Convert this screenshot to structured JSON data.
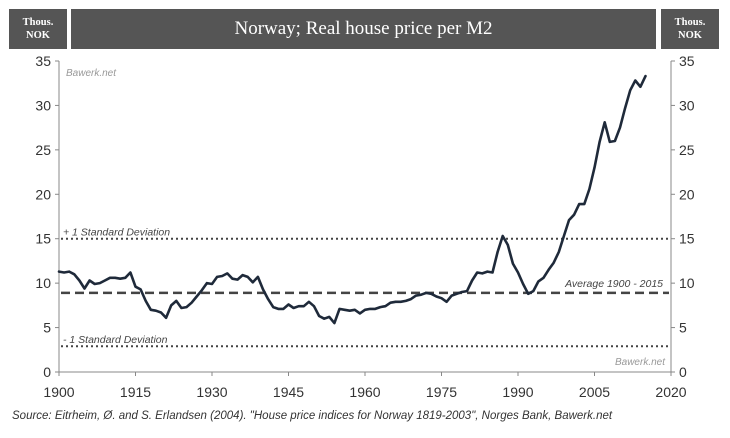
{
  "header": {
    "unit_left": "Thous.\nNOK",
    "unit_right": "Thous.\nNOK",
    "title": "Norway; Real house price per M2"
  },
  "watermarks": {
    "top": "Bawerk.net",
    "bottom": "Bawerk.net"
  },
  "source": "Source: Eitrheim, Ø. and S. Erlandsen (2004). \"House price indices for Norway 1819-2003\", Norges Bank, Bawerk.net",
  "colors": {
    "series": "#1f2a3a",
    "dotted": "#444444",
    "dashed": "#444444",
    "header_bg": "#555555"
  },
  "chart_data": {
    "type": "line",
    "title": "Norway; Real house price per M2",
    "ylabel": "Thous. NOK",
    "xlim": [
      1900,
      2020
    ],
    "ylim": [
      0,
      35
    ],
    "x_ticks": [
      1900,
      1915,
      1930,
      1945,
      1960,
      1975,
      1990,
      2005,
      2020
    ],
    "y_ticks": [
      0,
      5,
      10,
      15,
      20,
      25,
      30,
      35
    ],
    "grid": false,
    "series": [
      {
        "x": [
          1900,
          1901,
          1902,
          1903,
          1904,
          1905,
          1906,
          1907,
          1908,
          1909,
          1910,
          1911,
          1912,
          1913,
          1914,
          1915,
          1916,
          1917,
          1918,
          1919,
          1920,
          1921,
          1922,
          1923,
          1924,
          1925,
          1926,
          1927,
          1928,
          1929,
          1930,
          1931,
          1932,
          1933,
          1934,
          1935,
          1936,
          1937,
          1938,
          1939,
          1940,
          1941,
          1942,
          1943,
          1944,
          1945,
          1946,
          1947,
          1948,
          1949,
          1950,
          1951,
          1952,
          1953,
          1954,
          1955,
          1956,
          1957,
          1958,
          1959,
          1960,
          1961,
          1962,
          1963,
          1964,
          1965,
          1966,
          1967,
          1968,
          1969,
          1970,
          1971,
          1972,
          1973,
          1974,
          1975,
          1976,
          1977,
          1978,
          1979,
          1980,
          1981,
          1982,
          1983,
          1984,
          1985,
          1986,
          1987,
          1988,
          1989,
          1990,
          1991,
          1992,
          1993,
          1994,
          1995,
          1996,
          1997,
          1998,
          1999,
          2000,
          2001,
          2002,
          2003,
          2004,
          2005,
          2006,
          2007,
          2008,
          2009,
          2010,
          2011,
          2012,
          2013,
          2014,
          2015
        ],
        "values": [
          11.3,
          11.2,
          11.3,
          11.0,
          10.3,
          9.4,
          10.3,
          9.9,
          10.0,
          10.3,
          10.6,
          10.6,
          10.5,
          10.6,
          11.2,
          9.6,
          9.3,
          8.0,
          7.0,
          6.9,
          6.7,
          6.1,
          7.5,
          8.0,
          7.2,
          7.3,
          7.8,
          8.5,
          9.2,
          10.0,
          9.9,
          10.7,
          10.8,
          11.1,
          10.5,
          10.4,
          10.9,
          10.7,
          10.1,
          10.7,
          9.3,
          8.2,
          7.3,
          7.1,
          7.1,
          7.6,
          7.2,
          7.4,
          7.4,
          7.9,
          7.4,
          6.3,
          6.0,
          6.2,
          5.5,
          7.1,
          7.0,
          6.9,
          7.0,
          6.6,
          7.0,
          7.1,
          7.1,
          7.3,
          7.4,
          7.8,
          7.9,
          7.9,
          8.0,
          8.2,
          8.6,
          8.7,
          8.9,
          8.8,
          8.5,
          8.3,
          7.9,
          8.6,
          8.8,
          9.0,
          9.1,
          10.3,
          11.2,
          11.1,
          11.3,
          11.2,
          13.5,
          15.3,
          14.3,
          12.2,
          11.2,
          9.9,
          8.8,
          9.1,
          10.2,
          10.6,
          11.5,
          12.3,
          13.5,
          15.3,
          17.1,
          17.7,
          18.9,
          18.9,
          20.6,
          23.0,
          25.9,
          28.1,
          25.9,
          26.0,
          27.5,
          29.7,
          31.7,
          32.8,
          32.1,
          33.3
        ]
      }
    ],
    "reference_lines": [
      {
        "label": "+ 1 Standard Deviation",
        "value": 15.0,
        "style": "dotted"
      },
      {
        "label": "Average 1900 - 2015",
        "value": 8.9,
        "style": "dashed"
      },
      {
        "label": "- 1 Standard Deviation",
        "value": 2.9,
        "style": "dotted"
      }
    ]
  }
}
